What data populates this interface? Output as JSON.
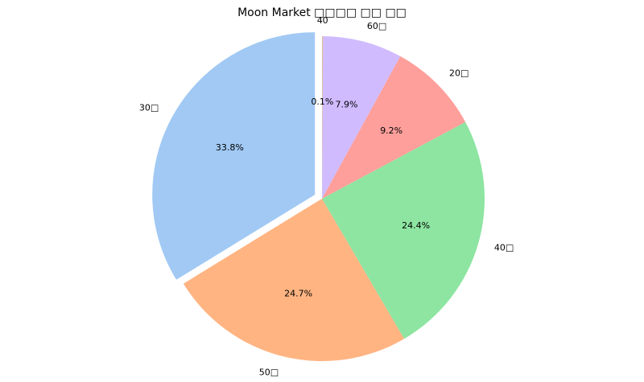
{
  "chart_data": {
    "type": "pie",
    "title": "Moon Market □□□□ □□ □□",
    "start_angle_deg": 90,
    "direction": "counterclockwise",
    "slices": [
      {
        "label": "30□",
        "value": 33.8,
        "pct_label": "33.8%",
        "color": "#a1c9f4",
        "explode": 0.05
      },
      {
        "label": "50□",
        "value": 24.7,
        "pct_label": "24.7%",
        "color": "#ffb482",
        "explode": 0
      },
      {
        "label": "40□",
        "value": 24.4,
        "pct_label": "24.4%",
        "color": "#8de5a1",
        "explode": 0
      },
      {
        "label": "20□",
        "value": 9.2,
        "pct_label": "9.2%",
        "color": "#ff9f9b",
        "explode": 0
      },
      {
        "label": "60□",
        "value": 7.9,
        "pct_label": "7.9%",
        "color": "#d0bbff",
        "explode": 0
      },
      {
        "label": "40",
        "value": 0.1,
        "pct_label": "0.1%",
        "color": "#debb9b",
        "explode": 0
      }
    ]
  }
}
